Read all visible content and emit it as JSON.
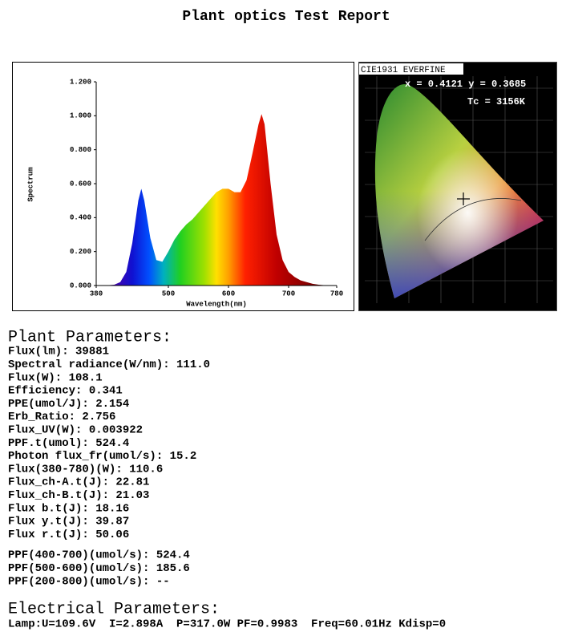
{
  "title": "Plant optics Test Report",
  "chart_data": {
    "type": "area",
    "ylabel": "Spectrum",
    "xlabel": "Wavelength(nm)",
    "x": [
      380,
      390,
      400,
      410,
      420,
      430,
      440,
      450,
      455,
      460,
      470,
      480,
      490,
      500,
      510,
      520,
      530,
      540,
      550,
      560,
      570,
      580,
      590,
      600,
      610,
      620,
      630,
      640,
      650,
      655,
      660,
      670,
      680,
      690,
      700,
      710,
      720,
      730,
      740,
      750,
      760,
      770,
      780
    ],
    "values": [
      0,
      0,
      0.002,
      0.005,
      0.02,
      0.08,
      0.25,
      0.5,
      0.57,
      0.5,
      0.28,
      0.15,
      0.14,
      0.2,
      0.27,
      0.32,
      0.36,
      0.39,
      0.43,
      0.47,
      0.51,
      0.55,
      0.57,
      0.57,
      0.55,
      0.55,
      0.62,
      0.78,
      0.95,
      1.01,
      0.95,
      0.6,
      0.3,
      0.15,
      0.08,
      0.05,
      0.03,
      0.02,
      0.01,
      0.005,
      0.002,
      0.001,
      0
    ],
    "xlim": [
      380,
      780
    ],
    "xticks": [
      380,
      500,
      600,
      700,
      780
    ],
    "ylim": [
      0,
      1.2
    ],
    "yticks": [
      {
        "value": 0,
        "label": "0.000"
      },
      {
        "value": 0.2,
        "label": "0.200"
      },
      {
        "value": 0.4,
        "label": "0.400"
      },
      {
        "value": 0.6,
        "label": "0.600"
      },
      {
        "value": 0.8,
        "label": "0.800"
      },
      {
        "value": 1.0,
        "label": "1.000"
      },
      {
        "value": 1.2,
        "label": "1.200"
      }
    ]
  },
  "cie": {
    "title": "CIE1931 EVERFINE",
    "coords": "x = 0.4121 y = 0.3685",
    "tc": "Tc = 3156K"
  },
  "plant": {
    "heading": "Plant Parameters:",
    "lines": [
      "Flux(lm): 39881",
      "Spectral radiance(W/nm): 111.0",
      "Flux(W): 108.1",
      "Efficiency: 0.341",
      "PPE(umol/J): 2.154",
      "Erb_Ratio: 2.756",
      "Flux_UV(W): 0.003922",
      "PPF.t(umol): 524.4",
      "Photon flux_fr(umol/s): 15.2",
      "Flux(380-780)(W): 110.6",
      "Flux_ch-A.t(J): 22.81",
      "Flux_ch-B.t(J): 21.03",
      "Flux b.t(J): 18.16",
      "Flux y.t(J): 39.87",
      "Flux r.t(J): 50.06"
    ],
    "ppf_lines": [
      "PPF(400-700)(umol/s): 524.4",
      "PPF(500-600)(umol/s): 185.6",
      "PPF(200-800)(umol/s): --"
    ]
  },
  "electrical": {
    "heading": "Electrical Parameters:",
    "line": "Lamp:U=109.6V  I=2.898A  P=317.0W PF=0.9983  Freq=60.01Hz Kdisp=0"
  }
}
